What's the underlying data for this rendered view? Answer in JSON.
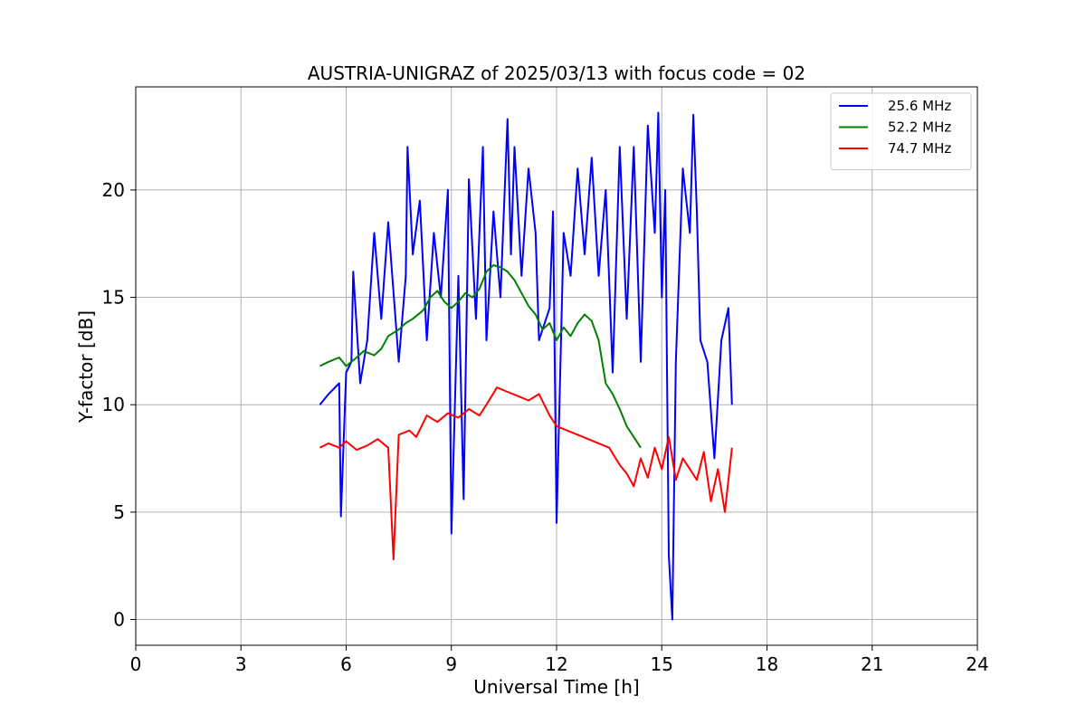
{
  "chart_data": {
    "type": "line",
    "title": "AUSTRIA-UNIGRAZ of 2025/03/13 with focus code = 02",
    "xlabel": "Universal Time [h]",
    "ylabel": "Y-factor [dB]",
    "xlim": [
      0,
      24
    ],
    "ylim": [
      -1.2,
      24.8
    ],
    "xticks": [
      0,
      3,
      6,
      9,
      12,
      15,
      18,
      21,
      24
    ],
    "yticks": [
      0,
      5,
      10,
      15,
      20
    ],
    "grid": true,
    "legend_position": "top-right",
    "series": [
      {
        "name": "25.6 MHz",
        "color": "#0000ff",
        "x": [
          5.25,
          5.5,
          5.8,
          5.85,
          6.0,
          6.15,
          6.2,
          6.4,
          6.6,
          6.8,
          7.0,
          7.2,
          7.5,
          7.7,
          7.75,
          7.9,
          8.1,
          8.3,
          8.5,
          8.7,
          8.9,
          9.0,
          9.2,
          9.35,
          9.5,
          9.7,
          9.9,
          10.0,
          10.2,
          10.4,
          10.6,
          10.7,
          10.8,
          11.0,
          11.2,
          11.4,
          11.5,
          11.8,
          11.9,
          12.0,
          12.2,
          12.4,
          12.6,
          12.8,
          13.0,
          13.2,
          13.4,
          13.6,
          13.8,
          14.0,
          14.2,
          14.4,
          14.6,
          14.8,
          14.9,
          15.0,
          15.1,
          15.2,
          15.3,
          15.4,
          15.6,
          15.8,
          15.9,
          16.0,
          16.1,
          16.3,
          16.5,
          16.7,
          16.9,
          17.0
        ],
        "values": [
          10.0,
          10.5,
          11.0,
          4.8,
          11.5,
          12.0,
          16.2,
          11.0,
          13.0,
          18.0,
          14.0,
          18.5,
          12.0,
          16.0,
          22.0,
          17.0,
          19.5,
          13.0,
          18.0,
          15.0,
          20.0,
          4.0,
          16.0,
          5.6,
          20.5,
          14.0,
          22.0,
          13.0,
          19.0,
          15.0,
          23.3,
          17.0,
          22.0,
          16.0,
          21.0,
          18.0,
          13.0,
          14.5,
          19.0,
          4.5,
          18.0,
          16.0,
          21.0,
          17.0,
          21.5,
          16.0,
          20.0,
          11.5,
          22.0,
          14.0,
          22.0,
          12.0,
          23.0,
          18.0,
          23.6,
          15.0,
          20.0,
          3.0,
          0.0,
          12.0,
          21.0,
          18.0,
          23.5,
          19.0,
          13.0,
          12.0,
          7.5,
          13.0,
          14.5,
          10.0
        ]
      },
      {
        "name": "52.2 MHz",
        "color": "#008000",
        "x": [
          5.25,
          5.5,
          5.8,
          6.0,
          6.3,
          6.5,
          6.8,
          7.0,
          7.2,
          7.5,
          7.7,
          7.9,
          8.2,
          8.4,
          8.6,
          8.8,
          9.0,
          9.2,
          9.4,
          9.6,
          9.8,
          10.0,
          10.2,
          10.4,
          10.6,
          10.8,
          11.0,
          11.2,
          11.4,
          11.6,
          11.8,
          12.0,
          12.2,
          12.4,
          12.6,
          12.8,
          13.0,
          13.2,
          13.4,
          13.6,
          13.8,
          14.0,
          14.2,
          14.4
        ],
        "values": [
          11.8,
          12.0,
          12.2,
          11.8,
          12.2,
          12.5,
          12.3,
          12.6,
          13.2,
          13.5,
          13.8,
          14.0,
          14.4,
          15.0,
          15.3,
          14.8,
          14.5,
          14.8,
          15.2,
          15.0,
          15.4,
          16.2,
          16.5,
          16.4,
          16.2,
          15.8,
          15.2,
          14.6,
          14.2,
          13.5,
          13.8,
          13.0,
          13.6,
          13.2,
          13.8,
          14.2,
          13.9,
          13.0,
          11.0,
          10.5,
          9.8,
          9.0,
          8.5,
          8.0
        ]
      },
      {
        "name": "74.7 MHz",
        "color": "#ff0000",
        "x": [
          5.25,
          5.5,
          5.8,
          6.0,
          6.3,
          6.6,
          6.9,
          7.2,
          7.35,
          7.5,
          7.8,
          8.0,
          8.3,
          8.6,
          8.9,
          9.2,
          9.5,
          9.8,
          10.0,
          10.3,
          10.6,
          10.9,
          11.2,
          11.5,
          11.8,
          12.0,
          12.3,
          12.6,
          12.9,
          13.2,
          13.5,
          13.8,
          14.0,
          14.2,
          14.4,
          14.6,
          14.8,
          15.0,
          15.2,
          15.4,
          15.6,
          15.8,
          16.0,
          16.2,
          16.4,
          16.6,
          16.8,
          17.0
        ],
        "values": [
          8.0,
          8.2,
          8.0,
          8.3,
          7.9,
          8.1,
          8.4,
          8.0,
          2.8,
          8.6,
          8.8,
          8.5,
          9.5,
          9.2,
          9.6,
          9.4,
          9.8,
          9.5,
          10.0,
          10.8,
          10.6,
          10.4,
          10.2,
          10.5,
          9.5,
          9.0,
          8.8,
          8.6,
          8.4,
          8.2,
          8.0,
          7.2,
          6.8,
          6.2,
          7.5,
          6.6,
          8.0,
          7.0,
          8.5,
          6.5,
          7.5,
          7.0,
          6.5,
          7.8,
          5.5,
          7.0,
          5.0,
          8.0
        ]
      }
    ]
  }
}
